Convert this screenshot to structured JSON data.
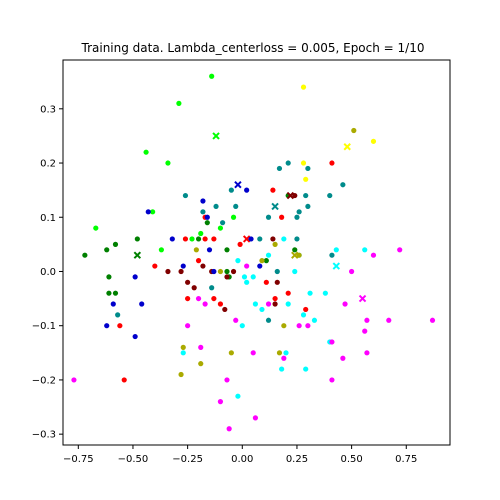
{
  "chart_data": {
    "type": "scatter",
    "title": "Training data. Lambda_centerloss = 0.005, Epoch = 1/10",
    "xlabel": "",
    "ylabel": "",
    "xlim": [
      -0.82,
      0.95
    ],
    "ylim": [
      -0.32,
      0.39
    ],
    "xticks": [
      -0.75,
      -0.5,
      -0.25,
      0.0,
      0.25,
      0.5,
      0.75
    ],
    "xtick_labels": [
      "−0.75",
      "−0.50",
      "−0.25",
      "0.00",
      "0.25",
      "0.50",
      "0.75"
    ],
    "yticks": [
      -0.3,
      -0.2,
      -0.1,
      0.0,
      0.1,
      0.2,
      0.3
    ],
    "ytick_labels": [
      "−0.3",
      "−0.2",
      "−0.1",
      "0.0",
      "0.1",
      "0.2",
      "0.3"
    ],
    "grid": false,
    "legend": "none",
    "series": [
      {
        "color": "#00ff00",
        "points": [
          [
            -0.14,
            0.36
          ],
          [
            -0.29,
            0.31
          ],
          [
            -0.44,
            0.22
          ],
          [
            -0.34,
            0.2
          ],
          [
            -0.41,
            0.11
          ],
          [
            -0.67,
            0.08
          ],
          [
            -0.37,
            0.04
          ],
          [
            -0.19,
            0.07
          ],
          [
            -0.04,
            0.1
          ],
          [
            -0.1,
            0.08
          ],
          [
            -0.23,
            0.06
          ]
        ],
        "centers": [
          [
            -0.12,
            0.25
          ]
        ]
      },
      {
        "color": "#008000",
        "points": [
          [
            -0.72,
            0.03
          ],
          [
            -0.58,
            0.05
          ],
          [
            -0.48,
            0.06
          ],
          [
            -0.62,
            0.04
          ],
          [
            -0.61,
            -0.01
          ],
          [
            -0.61,
            -0.04
          ],
          [
            -0.58,
            -0.04
          ],
          [
            -0.2,
            0.06
          ],
          [
            -0.16,
            0.09
          ],
          [
            -0.07,
            0.04
          ],
          [
            -0.06,
            -0.01
          ],
          [
            -0.07,
            0.0
          ],
          [
            0.21,
            0.14
          ],
          [
            0.24,
            0.04
          ],
          [
            0.11,
            0.02
          ]
        ],
        "centers": [
          [
            -0.48,
            0.03
          ]
        ]
      },
      {
        "color": "#ff0000",
        "points": [
          [
            -0.4,
            0.01
          ],
          [
            -0.26,
            0.06
          ],
          [
            -0.17,
            0.1
          ],
          [
            -0.13,
            0.06
          ],
          [
            -0.17,
            0.06
          ],
          [
            -0.2,
            0.02
          ],
          [
            -0.25,
            -0.05
          ],
          [
            -0.13,
            -0.05
          ],
          [
            -0.1,
            -0.06
          ],
          [
            -0.56,
            -0.1
          ],
          [
            -0.54,
            -0.2
          ],
          [
            -0.01,
            0.05
          ],
          [
            0.14,
            0.15
          ],
          [
            0.18,
            0.1
          ],
          [
            0.11,
            -0.02
          ],
          [
            0.15,
            -0.05
          ],
          [
            0.21,
            -0.04
          ],
          [
            0.29,
            -0.07
          ],
          [
            0.41,
            0.2
          ]
        ],
        "centers": [
          [
            0.02,
            0.06
          ]
        ]
      },
      {
        "color": "#800000",
        "points": [
          [
            -0.34,
            0.0
          ],
          [
            -0.28,
            0.0
          ],
          [
            -0.25,
            -0.02
          ],
          [
            -0.22,
            -0.03
          ],
          [
            -0.18,
            0.01
          ],
          [
            -0.14,
            0.0
          ],
          [
            -0.08,
            -0.07
          ],
          [
            -0.07,
            -0.01
          ],
          [
            -0.04,
            0.0
          ],
          [
            0.14,
            0.06
          ],
          [
            0.16,
            -0.02
          ],
          [
            0.24,
            0.14
          ],
          [
            0.15,
            -0.06
          ]
        ],
        "centers": [
          [
            0.22,
            0.14
          ]
        ]
      },
      {
        "color": "#0000cc",
        "points": [
          [
            -0.43,
            0.11
          ],
          [
            -0.32,
            0.06
          ],
          [
            -0.18,
            0.13
          ],
          [
            -0.16,
            0.1
          ],
          [
            -0.15,
            0.04
          ],
          [
            -0.27,
            0.01
          ],
          [
            -0.49,
            -0.01
          ],
          [
            -0.46,
            -0.06
          ],
          [
            -0.59,
            -0.06
          ],
          [
            -0.62,
            -0.1
          ],
          [
            -0.49,
            -0.12
          ],
          [
            -0.13,
            0.0
          ],
          [
            0.02,
            0.15
          ],
          [
            0.04,
            0.06
          ],
          [
            0.08,
            0.01
          ]
        ],
        "centers": [
          [
            -0.02,
            0.16
          ]
        ]
      },
      {
        "color": "#008b8b",
        "points": [
          [
            -0.26,
            0.14
          ],
          [
            -0.18,
            0.11
          ],
          [
            -0.12,
            0.12
          ],
          [
            -0.09,
            0.09
          ],
          [
            -0.05,
            0.15
          ],
          [
            -0.03,
            0.12
          ],
          [
            0.08,
            0.06
          ],
          [
            0.12,
            0.1
          ],
          [
            0.17,
            0.19
          ],
          [
            0.21,
            0.2
          ],
          [
            0.25,
            0.1
          ],
          [
            0.26,
            0.11
          ],
          [
            0.29,
            0.14
          ],
          [
            0.3,
            0.19
          ],
          [
            0.3,
            0.12
          ],
          [
            0.4,
            0.14
          ],
          [
            0.46,
            0.16
          ],
          [
            0.41,
            0.03
          ],
          [
            0.25,
            0.06
          ],
          [
            0.16,
            0.0
          ],
          [
            0.12,
            -0.09
          ],
          [
            -0.57,
            -0.08
          ],
          [
            -0.14,
            -0.03
          ]
        ],
        "centers": [
          [
            0.15,
            0.12
          ]
        ]
      },
      {
        "color": "#00ffff",
        "points": [
          [
            -0.02,
            0.02
          ],
          [
            0.01,
            -0.01
          ],
          [
            0.05,
            -0.01
          ],
          [
            0.12,
            0.03
          ],
          [
            0.19,
            0.06
          ],
          [
            0.24,
            0.0
          ],
          [
            0.26,
            0.03
          ],
          [
            0.31,
            -0.04
          ],
          [
            0.38,
            -0.04
          ],
          [
            0.43,
            0.04
          ],
          [
            0.56,
            0.04
          ],
          [
            0.06,
            -0.06
          ],
          [
            0.0,
            -0.1
          ],
          [
            0.09,
            -0.07
          ],
          [
            0.21,
            -0.06
          ],
          [
            0.28,
            -0.08
          ],
          [
            0.33,
            -0.09
          ],
          [
            -0.27,
            -0.15
          ],
          [
            0.18,
            -0.18
          ],
          [
            0.2,
            -0.15
          ],
          [
            0.29,
            -0.18
          ],
          [
            0.4,
            -0.13
          ],
          [
            -0.02,
            -0.23
          ],
          [
            0.02,
            -0.02
          ]
        ],
        "centers": [
          [
            0.43,
            0.01
          ]
        ]
      },
      {
        "color": "#ff00ff",
        "points": [
          [
            -0.25,
            -0.1
          ],
          [
            -0.2,
            -0.05
          ],
          [
            -0.17,
            -0.06
          ],
          [
            -0.19,
            -0.14
          ],
          [
            -0.07,
            -0.2
          ],
          [
            -0.1,
            -0.24
          ],
          [
            -0.06,
            -0.29
          ],
          [
            -0.77,
            -0.2
          ],
          [
            -0.03,
            -0.09
          ],
          [
            0.06,
            -0.27
          ],
          [
            0.05,
            -0.15
          ],
          [
            0.12,
            -0.06
          ],
          [
            0.19,
            -0.16
          ],
          [
            0.26,
            -0.1
          ],
          [
            0.3,
            -0.1
          ],
          [
            0.41,
            -0.2
          ],
          [
            0.41,
            -0.13
          ],
          [
            0.46,
            -0.16
          ],
          [
            0.47,
            -0.06
          ],
          [
            0.5,
            0.0
          ],
          [
            0.57,
            -0.09
          ],
          [
            0.57,
            -0.15
          ],
          [
            0.56,
            -0.11
          ],
          [
            0.6,
            0.03
          ],
          [
            0.67,
            -0.09
          ],
          [
            0.72,
            0.04
          ],
          [
            0.87,
            -0.09
          ],
          [
            0.02,
            0.01
          ]
        ],
        "centers": [
          [
            0.55,
            -0.05
          ]
        ]
      },
      {
        "color": "#ffff00",
        "points": [
          [
            0.28,
            0.34
          ],
          [
            0.28,
            0.2
          ],
          [
            0.29,
            0.17
          ],
          [
            0.6,
            0.24
          ]
        ],
        "centers": [
          [
            0.48,
            0.23
          ]
        ]
      },
      {
        "color": "#aaaa00",
        "points": [
          [
            -0.27,
            -0.14
          ],
          [
            -0.28,
            -0.19
          ],
          [
            -0.21,
            0.04
          ],
          [
            -0.19,
            -0.17
          ],
          [
            -0.1,
            -0.0
          ],
          [
            -0.05,
            -0.15
          ],
          [
            0.09,
            0.02
          ],
          [
            0.19,
            -0.1
          ],
          [
            0.26,
            0.03
          ],
          [
            0.17,
            -0.15
          ],
          [
            0.51,
            0.26
          ],
          [
            0.15,
            0.05
          ]
        ],
        "centers": [
          [
            0.24,
            0.03
          ]
        ]
      }
    ]
  }
}
